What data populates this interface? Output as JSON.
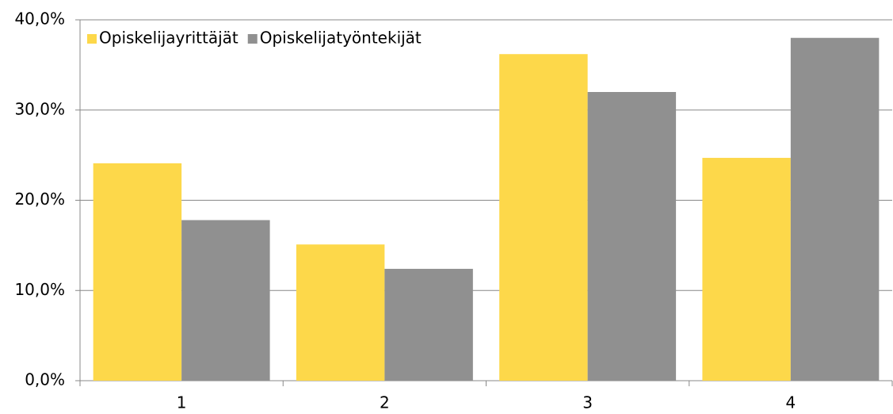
{
  "chart_data": {
    "type": "bar",
    "categories": [
      "1",
      "2",
      "3",
      "4"
    ],
    "series": [
      {
        "name": "Opiskelijayrittäjät",
        "color": "#fdd84a",
        "values": [
          24.1,
          15.1,
          36.2,
          24.7
        ]
      },
      {
        "name": "Opiskelijatyöntekijät",
        "color": "#909090",
        "values": [
          17.8,
          12.4,
          32.0,
          38.0
        ]
      }
    ],
    "ylim": [
      0,
      40
    ],
    "yticks": [
      {
        "value": 0,
        "label": "0,0%"
      },
      {
        "value": 10,
        "label": "10,0%"
      },
      {
        "value": 20,
        "label": "20,0%"
      },
      {
        "value": 30,
        "label": "30,0%"
      },
      {
        "value": 40,
        "label": "40,0%"
      }
    ],
    "grid": true,
    "legend": "top-left"
  }
}
